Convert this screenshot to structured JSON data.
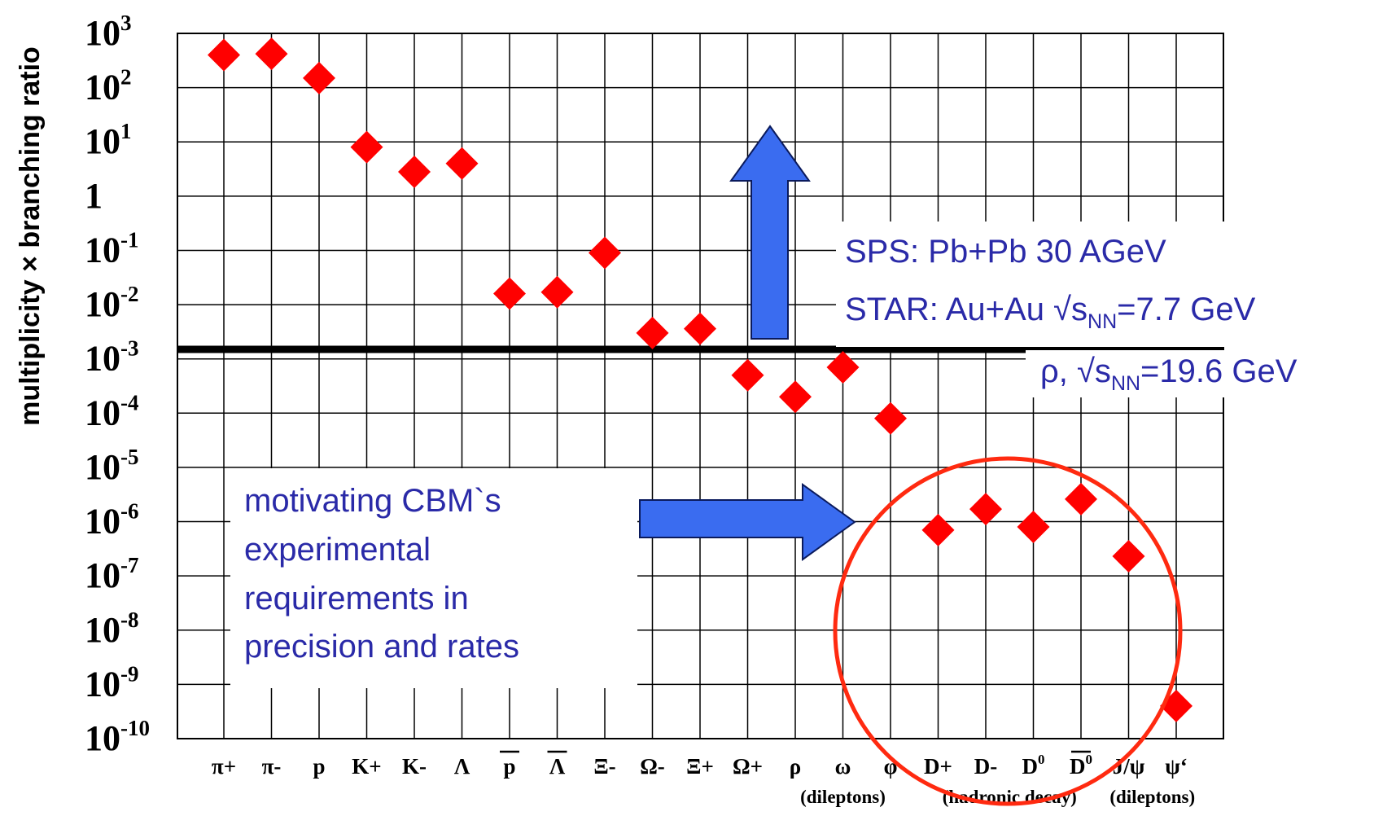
{
  "chart_data": {
    "type": "scatter",
    "ylabel": "multiplicity × branching ratio",
    "yscale": "log",
    "ylim": [
      1e-10,
      1000
    ],
    "grid": true,
    "marker_color": "#ff0000",
    "yticks": [
      {
        "base": "10",
        "exp": "3"
      },
      {
        "base": "10",
        "exp": "2"
      },
      {
        "base": "10",
        "exp": "1"
      },
      {
        "base": "1",
        "exp": ""
      },
      {
        "base": "10",
        "exp": "-1"
      },
      {
        "base": "10",
        "exp": "-2"
      },
      {
        "base": "10",
        "exp": "-3"
      },
      {
        "base": "10",
        "exp": "-4"
      },
      {
        "base": "10",
        "exp": "-5"
      },
      {
        "base": "10",
        "exp": "-6"
      },
      {
        "base": "10",
        "exp": "-7"
      },
      {
        "base": "10",
        "exp": "-8"
      },
      {
        "base": "10",
        "exp": "-9"
      },
      {
        "base": "10",
        "exp": "-10"
      }
    ],
    "categories": [
      {
        "label": "π+",
        "sup": "",
        "overline": false
      },
      {
        "label": "π-",
        "sup": "",
        "overline": false
      },
      {
        "label": "p",
        "sup": "",
        "overline": false
      },
      {
        "label": "K+",
        "sup": "",
        "overline": false
      },
      {
        "label": "K-",
        "sup": "",
        "overline": false
      },
      {
        "label": "Λ",
        "sup": "",
        "overline": false
      },
      {
        "label": "p",
        "sup": "",
        "overline": true
      },
      {
        "label": "Λ",
        "sup": "",
        "overline": true
      },
      {
        "label": "Ξ-",
        "sup": "",
        "overline": false
      },
      {
        "label": "Ω-",
        "sup": "",
        "overline": false
      },
      {
        "label": "Ξ+",
        "sup": "",
        "overline": false
      },
      {
        "label": "Ω+",
        "sup": "",
        "overline": false
      },
      {
        "label": "ρ",
        "sup": "",
        "overline": false
      },
      {
        "label": "ω",
        "sup": "",
        "overline": false
      },
      {
        "label": "φ",
        "sup": "",
        "overline": false
      },
      {
        "label": "D+",
        "sup": "",
        "overline": false
      },
      {
        "label": "D-",
        "sup": "",
        "overline": false
      },
      {
        "label": "D",
        "sup": "0",
        "overline": false
      },
      {
        "label": "D",
        "sup": "0",
        "overline": true
      },
      {
        "label": "J/ψ",
        "sup": "",
        "overline": false
      },
      {
        "label": "ψ‘",
        "sup": "",
        "overline": false
      }
    ],
    "values": [
      400,
      420,
      150,
      8,
      2.8,
      4,
      0.016,
      0.017,
      0.09,
      0.003,
      0.0036,
      0.0005,
      0.0002,
      0.0007,
      8e-05,
      7e-07,
      1.7e-06,
      8e-07,
      2.6e-06,
      2.3e-07,
      4e-10
    ],
    "group_labels": [
      {
        "text": "(dileptons)",
        "category_index": 13
      },
      {
        "text": "(hadronic decay)",
        "category_index": 16.5
      },
      {
        "text": "(dileptons)",
        "category_index": 19.5
      }
    ],
    "reference_line": {
      "value": 0.0015,
      "color": "#000000"
    },
    "annotations": {
      "sps_line": "SPS: Pb+Pb 30 AGeV",
      "star_prefix": "STAR: Au+Au √s",
      "star_sub": "NN",
      "star_suffix": "=7.7 GeV",
      "rho_prefix": "ρ, √s",
      "rho_sub": "NN",
      "rho_suffix": "=19.6 GeV",
      "motivation_lines": [
        "motivating CBM`s",
        "experimental",
        "requirements in",
        "precision and rates"
      ]
    },
    "arrow_color": "#3a6cf0",
    "circle_color": "#ff2a10"
  }
}
